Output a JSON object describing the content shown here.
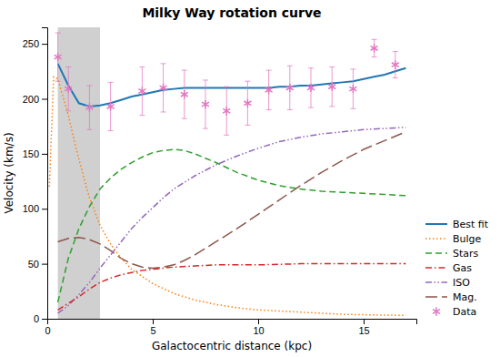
{
  "chart_data": {
    "type": "line",
    "title": "Milky Way rotation curve",
    "xlabel": "Galactocentric distance (kpc)",
    "ylabel": "Velocity (km/s)",
    "xlim": [
      0,
      17.5
    ],
    "ylim": [
      0,
      265
    ],
    "xticks": [
      0,
      5,
      10,
      15
    ],
    "yticks": [
      0,
      50,
      100,
      150,
      200,
      250
    ],
    "grid": false,
    "legend": "right",
    "shaded_region": {
      "values": [
        0.5,
        2.5
      ],
      "color": "#d0d0d0"
    },
    "series": [
      {
        "name": "Best fit",
        "type": "line",
        "line_style": "solid",
        "x": [
          0.5,
          1.0,
          1.5,
          2.0,
          2.5,
          3.0,
          3.5,
          4.0,
          4.5,
          5.0,
          5.5,
          6.0,
          6.5,
          7.0,
          7.5,
          8.0,
          8.5,
          9.0,
          9.5,
          10.0,
          10.5,
          11.0,
          11.5,
          12.0,
          12.5,
          13.0,
          13.5,
          14.0,
          14.5,
          15.0,
          15.5,
          16.0,
          16.5,
          17.0
        ],
        "values": [
          232,
          212,
          196,
          193,
          194,
          196,
          199,
          202,
          204,
          206,
          208,
          209,
          210,
          210,
          210,
          210,
          210,
          210,
          210,
          210,
          210,
          211,
          211,
          212,
          212,
          213,
          214,
          215,
          216,
          218,
          220,
          222,
          225,
          228
        ]
      },
      {
        "name": "Bulge",
        "type": "line",
        "line_style": "dotted",
        "x": [
          0.1,
          0.3,
          0.5,
          0.7,
          1.0,
          1.3,
          1.5,
          2.0,
          2.5,
          3.0,
          3.5,
          4.0,
          5.0,
          6.0,
          7.0,
          8.0,
          9.0,
          10.0,
          12.0,
          14.0,
          17.0
        ],
        "values": [
          120,
          220,
          218,
          205,
          185,
          160,
          145,
          110,
          85,
          68,
          55,
          45,
          32,
          23,
          17,
          13,
          10,
          8,
          6,
          4,
          3
        ]
      },
      {
        "name": "Stars",
        "type": "line",
        "line_style": "dashed",
        "x": [
          0.5,
          1.0,
          1.5,
          2.0,
          2.5,
          3.0,
          3.5,
          4.0,
          4.5,
          5.0,
          5.5,
          6.0,
          6.5,
          7.0,
          7.5,
          8.0,
          9.0,
          10.0,
          11.0,
          12.0,
          13.0,
          14.0,
          15.0,
          16.0,
          17.0
        ],
        "values": [
          15,
          55,
          82,
          102,
          118,
          128,
          136,
          142,
          147,
          151,
          153,
          154,
          153,
          150,
          146,
          142,
          133,
          126,
          121,
          118,
          116,
          115,
          114,
          113,
          112
        ]
      },
      {
        "name": "Gas",
        "type": "line",
        "line_style": "dashdot",
        "x": [
          0.5,
          1.0,
          1.5,
          2.0,
          2.5,
          3.0,
          3.5,
          4.0,
          4.5,
          5.0,
          5.5,
          6.0,
          7.0,
          8.0,
          10.0,
          12.0,
          14.0,
          17.0
        ],
        "values": [
          8,
          14,
          20,
          27,
          33,
          37,
          40,
          42,
          44,
          45,
          46,
          47,
          48,
          49,
          49,
          50,
          50,
          50
        ]
      },
      {
        "name": "ISO",
        "type": "line",
        "line_style": "dashdotdot",
        "x": [
          0.5,
          1.0,
          1.5,
          2.0,
          2.5,
          3.0,
          3.5,
          4.0,
          4.5,
          5.0,
          5.5,
          6.0,
          6.5,
          7.0,
          7.5,
          8.0,
          9.0,
          10.0,
          11.0,
          12.0,
          13.0,
          14.0,
          15.0,
          16.0,
          17.0
        ],
        "values": [
          5,
          12,
          22,
          33,
          46,
          58,
          70,
          82,
          92,
          101,
          110,
          118,
          124,
          130,
          135,
          140,
          148,
          155,
          161,
          165,
          168,
          170,
          172,
          173,
          174
        ]
      },
      {
        "name": "Mag.",
        "type": "line",
        "line_style": "longdash",
        "x": [
          0.5,
          1.0,
          1.5,
          2.0,
          2.5,
          3.0,
          3.5,
          4.0,
          4.5,
          5.0,
          5.5,
          6.0,
          6.5,
          7.0,
          7.5,
          8.0,
          9.0,
          10.0,
          11.0,
          12.0,
          13.0,
          14.0,
          15.0,
          16.0,
          17.0
        ],
        "values": [
          70,
          73,
          74,
          72,
          68,
          62,
          55,
          50,
          47,
          46,
          47,
          49,
          53,
          58,
          64,
          70,
          82,
          95,
          108,
          121,
          133,
          144,
          154,
          162,
          170
        ]
      },
      {
        "name": "Data",
        "type": "scatter",
        "marker": "asterisk",
        "x": [
          0.5,
          1.0,
          2.0,
          3.0,
          4.5,
          5.5,
          6.5,
          7.5,
          8.5,
          9.5,
          10.5,
          11.5,
          12.5,
          13.5,
          14.5,
          15.5,
          16.5
        ],
        "values": [
          238,
          209,
          192,
          193,
          207,
          210,
          204,
          195,
          189,
          196,
          208,
          210,
          210,
          211,
          209,
          246,
          231
        ],
        "errors": [
          22,
          20,
          20,
          22,
          22,
          22,
          22,
          22,
          22,
          20,
          18,
          20,
          18,
          18,
          18,
          8,
          12
        ]
      }
    ]
  }
}
